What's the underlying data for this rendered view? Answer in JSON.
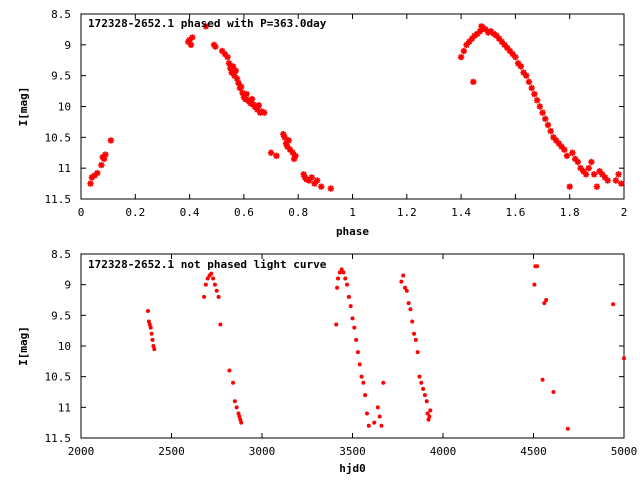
{
  "colors": {
    "points": "#ff0000",
    "axes": "#000000",
    "background": "#ffffff"
  },
  "chart_data": [
    {
      "type": "scatter",
      "title": "172328-2652.1 phased with P=363.0day",
      "xlabel": "phase",
      "ylabel": "I[mag]",
      "xlim": [
        0,
        2
      ],
      "ylim": [
        11.5,
        8.5
      ],
      "y_inverted": true,
      "grid": false,
      "marker": "star",
      "x_ticks": [
        "0",
        "0.2",
        "0.4",
        "0.6",
        "0.8",
        "1",
        "1.2",
        "1.4",
        "1.6",
        "1.8",
        "2"
      ],
      "y_ticks": [
        "8.5",
        "9",
        "9.5",
        "10",
        "10.5",
        "11",
        "11.5"
      ],
      "series": [
        {
          "points": [
            [
              0.035,
              11.25
            ],
            [
              0.04,
              11.15
            ],
            [
              0.05,
              11.12
            ],
            [
              0.06,
              11.08
            ],
            [
              0.075,
              10.95
            ],
            [
              0.08,
              10.82
            ],
            [
              0.085,
              10.85
            ],
            [
              0.09,
              10.78
            ],
            [
              0.11,
              10.55
            ],
            [
              0.395,
              8.95
            ],
            [
              0.4,
              8.92
            ],
            [
              0.405,
              9.0
            ],
            [
              0.41,
              8.88
            ],
            [
              0.46,
              8.7
            ],
            [
              0.49,
              9.0
            ],
            [
              0.495,
              9.03
            ],
            [
              0.52,
              9.1
            ],
            [
              0.53,
              9.15
            ],
            [
              0.54,
              9.2
            ],
            [
              0.545,
              9.3
            ],
            [
              0.55,
              9.38
            ],
            [
              0.555,
              9.45
            ],
            [
              0.56,
              9.35
            ],
            [
              0.565,
              9.5
            ],
            [
              0.57,
              9.42
            ],
            [
              0.575,
              9.55
            ],
            [
              0.58,
              9.62
            ],
            [
              0.585,
              9.7
            ],
            [
              0.59,
              9.68
            ],
            [
              0.595,
              9.78
            ],
            [
              0.6,
              9.85
            ],
            [
              0.605,
              9.88
            ],
            [
              0.61,
              9.8
            ],
            [
              0.615,
              9.9
            ],
            [
              0.62,
              9.92
            ],
            [
              0.625,
              9.95
            ],
            [
              0.63,
              9.88
            ],
            [
              0.635,
              9.97
            ],
            [
              0.64,
              10.0
            ],
            [
              0.645,
              10.02
            ],
            [
              0.65,
              10.05
            ],
            [
              0.655,
              9.98
            ],
            [
              0.66,
              10.1
            ],
            [
              0.665,
              10.08
            ],
            [
              0.675,
              10.1
            ],
            [
              0.7,
              10.75
            ],
            [
              0.72,
              10.8
            ],
            [
              0.745,
              10.45
            ],
            [
              0.75,
              10.5
            ],
            [
              0.755,
              10.6
            ],
            [
              0.76,
              10.65
            ],
            [
              0.765,
              10.55
            ],
            [
              0.77,
              10.7
            ],
            [
              0.78,
              10.75
            ],
            [
              0.785,
              10.85
            ],
            [
              0.79,
              10.8
            ],
            [
              0.82,
              11.1
            ],
            [
              0.825,
              11.15
            ],
            [
              0.83,
              11.18
            ],
            [
              0.84,
              11.2
            ],
            [
              0.85,
              11.15
            ],
            [
              0.86,
              11.25
            ],
            [
              0.87,
              11.2
            ],
            [
              0.885,
              11.3
            ],
            [
              0.92,
              11.33
            ],
            [
              1.4,
              9.2
            ],
            [
              1.41,
              9.1
            ],
            [
              1.42,
              9.0
            ],
            [
              1.43,
              8.95
            ],
            [
              1.44,
              8.9
            ],
            [
              1.445,
              9.6
            ],
            [
              1.45,
              8.85
            ],
            [
              1.46,
              8.82
            ],
            [
              1.47,
              8.78
            ],
            [
              1.475,
              8.7
            ],
            [
              1.48,
              8.72
            ],
            [
              1.49,
              8.75
            ],
            [
              1.5,
              8.8
            ],
            [
              1.51,
              8.78
            ],
            [
              1.52,
              8.82
            ],
            [
              1.53,
              8.85
            ],
            [
              1.54,
              8.9
            ],
            [
              1.55,
              8.95
            ],
            [
              1.56,
              9.0
            ],
            [
              1.57,
              9.05
            ],
            [
              1.58,
              9.1
            ],
            [
              1.59,
              9.15
            ],
            [
              1.6,
              9.2
            ],
            [
              1.61,
              9.3
            ],
            [
              1.62,
              9.35
            ],
            [
              1.63,
              9.45
            ],
            [
              1.64,
              9.5
            ],
            [
              1.65,
              9.6
            ],
            [
              1.66,
              9.7
            ],
            [
              1.67,
              9.8
            ],
            [
              1.68,
              9.9
            ],
            [
              1.69,
              10.0
            ],
            [
              1.7,
              10.1
            ],
            [
              1.71,
              10.2
            ],
            [
              1.72,
              10.3
            ],
            [
              1.73,
              10.4
            ],
            [
              1.74,
              10.5
            ],
            [
              1.75,
              10.55
            ],
            [
              1.76,
              10.6
            ],
            [
              1.77,
              10.65
            ],
            [
              1.78,
              10.7
            ],
            [
              1.79,
              10.8
            ],
            [
              1.8,
              11.3
            ],
            [
              1.81,
              10.75
            ],
            [
              1.82,
              10.85
            ],
            [
              1.83,
              10.9
            ],
            [
              1.84,
              11.0
            ],
            [
              1.85,
              11.05
            ],
            [
              1.86,
              11.1
            ],
            [
              1.87,
              11.0
            ],
            [
              1.88,
              10.9
            ],
            [
              1.89,
              11.1
            ],
            [
              1.9,
              11.3
            ],
            [
              1.91,
              11.05
            ],
            [
              1.92,
              11.1
            ],
            [
              1.93,
              11.15
            ],
            [
              1.94,
              11.2
            ],
            [
              1.97,
              11.2
            ],
            [
              1.98,
              11.1
            ],
            [
              1.99,
              11.25
            ]
          ]
        }
      ]
    },
    {
      "type": "scatter",
      "title": "172328-2652.1 not phased light curve",
      "xlabel": "hjd0",
      "ylabel": "I[mag]",
      "xlim": [
        2000,
        5000
      ],
      "ylim": [
        11.5,
        8.5
      ],
      "y_inverted": true,
      "grid": false,
      "marker": "dot",
      "x_ticks": [
        "2000",
        "2500",
        "3000",
        "3500",
        "4000",
        "4500",
        "5000"
      ],
      "y_ticks": [
        "8.5",
        "9",
        "9.5",
        "10",
        "10.5",
        "11",
        "11.5"
      ],
      "series": [
        {
          "points": [
            [
              2370,
              9.43
            ],
            [
              2375,
              9.6
            ],
            [
              2380,
              9.65
            ],
            [
              2385,
              9.7
            ],
            [
              2390,
              9.8
            ],
            [
              2395,
              9.9
            ],
            [
              2400,
              10.0
            ],
            [
              2405,
              10.05
            ],
            [
              2680,
              9.2
            ],
            [
              2690,
              9.0
            ],
            [
              2700,
              8.9
            ],
            [
              2710,
              8.85
            ],
            [
              2720,
              8.82
            ],
            [
              2730,
              8.9
            ],
            [
              2740,
              9.0
            ],
            [
              2750,
              9.1
            ],
            [
              2760,
              9.2
            ],
            [
              2770,
              9.65
            ],
            [
              2820,
              10.4
            ],
            [
              2840,
              10.6
            ],
            [
              2850,
              10.9
            ],
            [
              2860,
              11.0
            ],
            [
              2870,
              11.1
            ],
            [
              2875,
              11.15
            ],
            [
              2880,
              11.2
            ],
            [
              2885,
              11.25
            ],
            [
              3410,
              9.65
            ],
            [
              3415,
              9.05
            ],
            [
              3420,
              8.9
            ],
            [
              3430,
              8.8
            ],
            [
              3440,
              8.75
            ],
            [
              3450,
              8.8
            ],
            [
              3460,
              8.9
            ],
            [
              3470,
              9.0
            ],
            [
              3480,
              9.2
            ],
            [
              3490,
              9.35
            ],
            [
              3500,
              9.55
            ],
            [
              3510,
              9.7
            ],
            [
              3520,
              9.9
            ],
            [
              3530,
              10.1
            ],
            [
              3540,
              10.3
            ],
            [
              3550,
              10.5
            ],
            [
              3560,
              10.6
            ],
            [
              3570,
              10.8
            ],
            [
              3580,
              11.1
            ],
            [
              3590,
              11.3
            ],
            [
              3620,
              11.25
            ],
            [
              3640,
              11.0
            ],
            [
              3650,
              11.15
            ],
            [
              3660,
              11.3
            ],
            [
              3670,
              10.6
            ],
            [
              3770,
              8.95
            ],
            [
              3780,
              8.85
            ],
            [
              3790,
              9.05
            ],
            [
              3800,
              9.1
            ],
            [
              3810,
              9.3
            ],
            [
              3820,
              9.4
            ],
            [
              3830,
              9.6
            ],
            [
              3840,
              9.8
            ],
            [
              3850,
              9.9
            ],
            [
              3860,
              10.1
            ],
            [
              3870,
              10.5
            ],
            [
              3880,
              10.6
            ],
            [
              3890,
              10.7
            ],
            [
              3900,
              10.8
            ],
            [
              3910,
              10.9
            ],
            [
              3915,
              11.1
            ],
            [
              3920,
              11.2
            ],
            [
              3925,
              11.15
            ],
            [
              3930,
              11.05
            ],
            [
              4510,
              8.7
            ],
            [
              4520,
              8.7
            ],
            [
              4505,
              9.0
            ],
            [
              4560,
              9.3
            ],
            [
              4570,
              9.25
            ],
            [
              4550,
              10.55
            ],
            [
              4610,
              10.75
            ],
            [
              4690,
              11.35
            ],
            [
              4940,
              9.32
            ],
            [
              5000,
              10.2
            ]
          ]
        }
      ]
    }
  ]
}
